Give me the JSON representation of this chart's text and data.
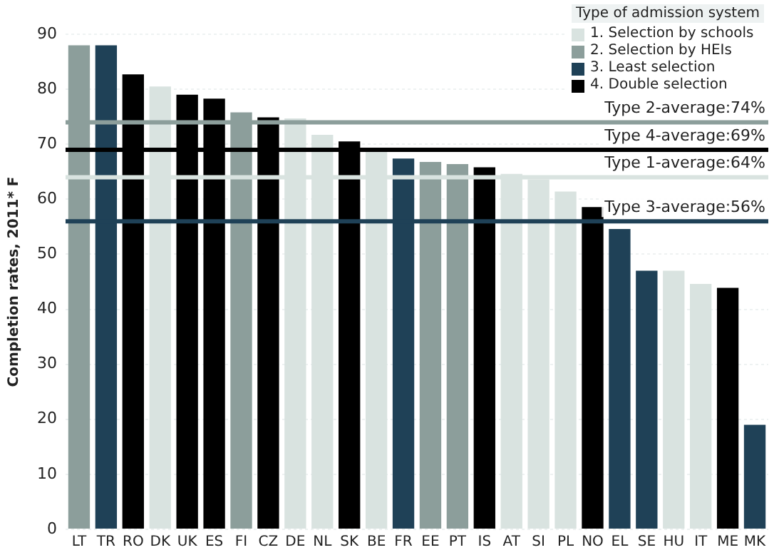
{
  "chart_data": {
    "type": "bar",
    "ylabel": "Completion rates, 2011* F",
    "legend_title": "Type of admission system",
    "categories": [
      "LT",
      "TR",
      "RO",
      "DK",
      "UK",
      "ES",
      "FI",
      "CZ",
      "DE",
      "NL",
      "SK",
      "BE",
      "FR",
      "EE",
      "PT",
      "IS",
      "AT",
      "SI",
      "PL",
      "NO",
      "EL",
      "SE",
      "HU",
      "IT",
      "ME",
      "MK"
    ],
    "series": [
      {
        "name": "1. Selection by schools",
        "color": "#d9e3e0",
        "values": [
          null,
          null,
          null,
          80.5,
          null,
          null,
          null,
          null,
          74.7,
          71.7,
          null,
          69,
          null,
          null,
          null,
          null,
          64.6,
          63.6,
          61.4,
          null,
          null,
          null,
          47,
          44.6,
          null,
          null
        ]
      },
      {
        "name": "2. Selection by HEIs",
        "color": "#8c9e9b",
        "values": [
          88,
          null,
          null,
          null,
          null,
          null,
          75.8,
          null,
          null,
          null,
          null,
          null,
          null,
          66.8,
          66.4,
          null,
          null,
          null,
          null,
          null,
          null,
          null,
          null,
          null,
          null,
          null
        ]
      },
      {
        "name": "3. Least selection",
        "color": "#1f4157",
        "values": [
          null,
          88,
          null,
          null,
          null,
          null,
          null,
          null,
          null,
          null,
          null,
          null,
          67.4,
          null,
          null,
          null,
          null,
          null,
          null,
          null,
          54.6,
          47,
          null,
          null,
          null,
          19
        ]
      },
      {
        "name": "4. Double selection",
        "color": "#000000",
        "values": [
          null,
          null,
          82.7,
          null,
          79,
          78.3,
          null,
          74.9,
          null,
          null,
          70.5,
          null,
          null,
          null,
          null,
          65.8,
          null,
          null,
          null,
          58.6,
          null,
          null,
          null,
          null,
          43.9,
          null
        ]
      }
    ],
    "ref_lines": [
      {
        "axis": "y",
        "value": 74,
        "label": "Type 2-average:74%",
        "color": "#8c9e9b"
      },
      {
        "axis": "y",
        "value": 69,
        "label": "Type 4-average:69%",
        "color": "#000000"
      },
      {
        "axis": "y",
        "value": 64,
        "label": "Type 1-average:64%",
        "color": "#d9e3e0"
      },
      {
        "axis": "y",
        "value": 56,
        "label": "Type 3-average:56%",
        "color": "#1f4157"
      }
    ],
    "ylim": [
      0,
      90
    ],
    "yticks": [
      0,
      10,
      20,
      30,
      40,
      50,
      60,
      70,
      80,
      90
    ],
    "grid": "y",
    "legend": "top right"
  }
}
